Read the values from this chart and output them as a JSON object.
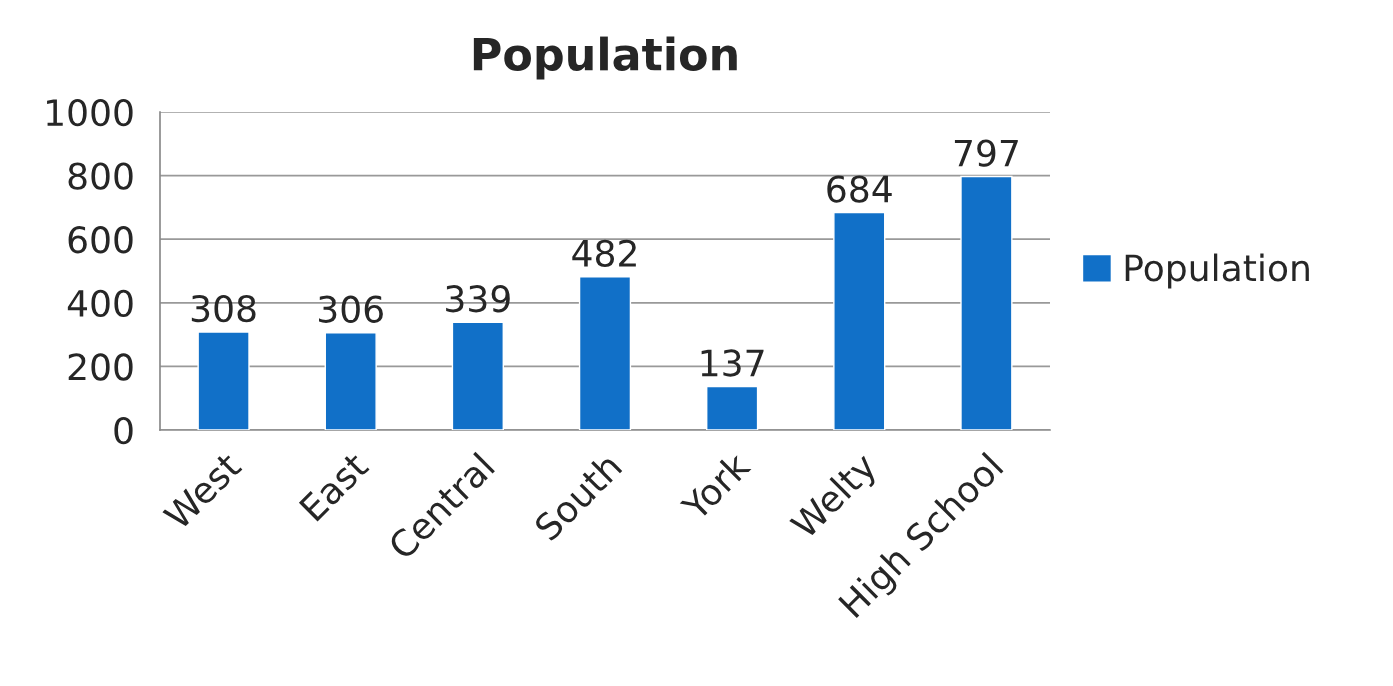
{
  "chart_data": {
    "type": "bar",
    "title": "Population",
    "categories": [
      "West",
      "East",
      "Central",
      "South",
      "York",
      "Welty",
      "High School"
    ],
    "series": [
      {
        "name": "Population",
        "color": "#1170c8",
        "values": [
          308,
          306,
          339,
          482,
          137,
          684,
          797
        ]
      }
    ],
    "ylim": [
      0,
      1000
    ],
    "yticks": [
      0,
      200,
      400,
      600,
      800,
      1000
    ],
    "grid": "y",
    "legend": "right",
    "data_labels": true
  }
}
